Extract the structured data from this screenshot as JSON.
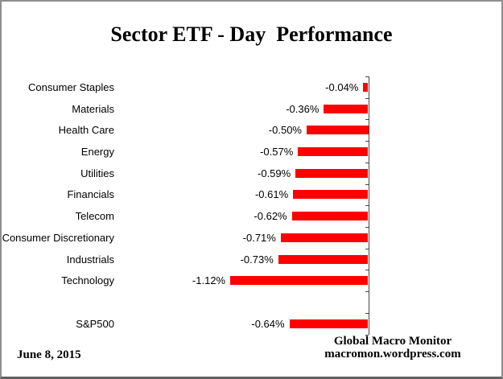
{
  "chart_data": {
    "type": "bar",
    "orientation": "horizontal",
    "title": "Sector ETF - Day  Performance",
    "categories": [
      "Consumer Staples",
      "Materials",
      "Health Care",
      "Energy",
      "Utilities",
      "Financials",
      "Telecom",
      "Consumer Discretionary",
      "Industrials",
      "Technology",
      "S&P500"
    ],
    "values": [
      -0.04,
      -0.36,
      -0.5,
      -0.57,
      -0.59,
      -0.61,
      -0.62,
      -0.71,
      -0.73,
      -1.12,
      -0.64
    ],
    "value_labels": [
      "-0.04%",
      "-0.36%",
      "-0.50%",
      "-0.57%",
      "-0.59%",
      "-0.61%",
      "-0.62%",
      "-0.71%",
      "-0.73%",
      "-1.12%",
      "-0.64%"
    ],
    "bar_color": "#ff0000",
    "axis_color": "#464646",
    "xlim": [
      -1.3,
      0
    ],
    "gap_row_before_last": true,
    "grid": false,
    "legend": false
  },
  "footer": {
    "date": "June 8, 2015",
    "credit_name": "Global Macro Monitor",
    "credit_url": "macromon.wordpress.com"
  }
}
